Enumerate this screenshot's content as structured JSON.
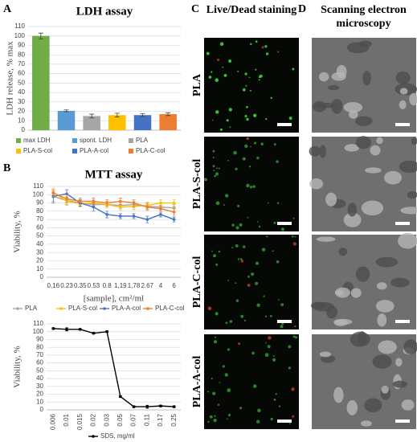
{
  "chart_data": [
    {
      "type": "bar",
      "panel": "A",
      "title": "LDH assay",
      "ylabel": "LDH release, % max",
      "ylim": [
        0,
        110
      ],
      "yticks": [
        0,
        10,
        20,
        30,
        40,
        50,
        60,
        70,
        80,
        90,
        100,
        110
      ],
      "grid": true,
      "series": [
        {
          "name": "max LDH",
          "color": "#70ad47",
          "values": [
            100
          ],
          "errors": [
            3
          ]
        },
        {
          "name": "spont. LDH",
          "color": "#5b9bd5",
          "values": [
            20.5
          ],
          "errors": [
            1
          ]
        },
        {
          "name": "PLA",
          "color": "#a5a5a5",
          "values": [
            15
          ],
          "errors": [
            2
          ]
        },
        {
          "name": "PLA-S-col",
          "color": "#ffc000",
          "values": [
            16
          ],
          "errors": [
            2
          ]
        },
        {
          "name": "PLA-A-col",
          "color": "#4472c4",
          "values": [
            16
          ],
          "errors": [
            1.5
          ]
        },
        {
          "name": "PLA-C-col",
          "color": "#ed7d31",
          "values": [
            17
          ],
          "errors": [
            1.5
          ]
        }
      ]
    },
    {
      "type": "line",
      "panel": "B",
      "title": "MTT assay",
      "ylabel": "Viability, %",
      "xlabel": "[sample], cm²/ml",
      "categories": [
        "0,16",
        "0.23",
        "0.35",
        "0.53",
        "0.8",
        "1,19",
        "1,78",
        "2.67",
        "4",
        "6"
      ],
      "ylim": [
        0,
        110
      ],
      "yticks": [
        0,
        10,
        20,
        30,
        40,
        50,
        60,
        70,
        80,
        90,
        100,
        110
      ],
      "grid": true,
      "series": [
        {
          "name": "PLA",
          "color": "#a5a5a5",
          "values": [
            98,
            93,
            90,
            88,
            88,
            87,
            88,
            86,
            85,
            84
          ],
          "errors": [
            6,
            5,
            4,
            4,
            4,
            4,
            4,
            4,
            4,
            4
          ]
        },
        {
          "name": "PLA-S-col",
          "color": "#ffc000",
          "values": [
            103,
            92,
            89,
            90,
            88,
            85,
            86,
            87,
            90,
            90
          ],
          "errors": [
            5,
            5,
            4,
            4,
            4,
            4,
            4,
            4,
            4,
            4
          ]
        },
        {
          "name": "PLA-A-col",
          "color": "#4472c4",
          "values": [
            98,
            101,
            90,
            85,
            76,
            74,
            74,
            70,
            76,
            70
          ],
          "errors": [
            8,
            5,
            4,
            5,
            4,
            3,
            3,
            4,
            3,
            3
          ]
        },
        {
          "name": "PLA-C-col",
          "color": "#ed7d31",
          "values": [
            102,
            95,
            92,
            92,
            90,
            92,
            90,
            85,
            83,
            79
          ],
          "errors": [
            4,
            5,
            4,
            4,
            4,
            4,
            4,
            4,
            4,
            4
          ]
        }
      ]
    },
    {
      "type": "line",
      "ylabel": "Viability, %",
      "categories": [
        "0.006",
        "0.01",
        "0.015",
        "0.02",
        "0.03",
        "0.05",
        "0.07",
        "0.11",
        "0.17",
        "0.25"
      ],
      "ylim": [
        0,
        110
      ],
      "yticks": [
        0,
        10,
        20,
        30,
        40,
        50,
        60,
        70,
        80,
        90,
        100,
        110
      ],
      "grid": true,
      "series": [
        {
          "name": "SDS, mg/ml",
          "color": "#000000",
          "values": [
            104,
            103,
            103,
            98,
            100,
            17,
            4,
            4,
            5,
            4
          ],
          "errors": [
            1,
            2,
            1,
            1,
            1,
            1,
            1,
            2,
            1,
            1
          ]
        }
      ]
    }
  ],
  "panels": [
    {
      "label": "C",
      "title": "Live/Dead staining"
    },
    {
      "label": "D",
      "title": "Scanning electron microscopy"
    }
  ],
  "rows": [
    "PLA",
    "PLA-S-col",
    "PLA-C-col",
    "PLA-A-col"
  ]
}
